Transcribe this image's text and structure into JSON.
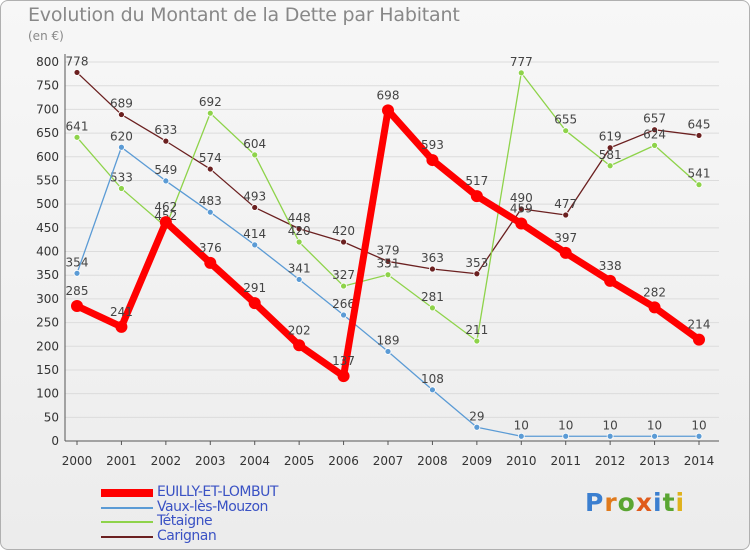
{
  "title": "Evolution du Montant de la Dette par Habitant",
  "unit": "(en €)",
  "logo": {
    "text": "Proxiti",
    "letter_colors": [
      "#3b7fd0",
      "#e07a1c",
      "#5aa532",
      "#e05b1c",
      "#3b7fd0",
      "#5aa532",
      "#e0b21c"
    ]
  },
  "chart_data": {
    "type": "line",
    "title": "Evolution du Montant de la Dette par Habitant",
    "ylabel": "(en €)",
    "xlabel": "",
    "ylim": [
      0,
      800
    ],
    "yticks": [
      0,
      50,
      100,
      150,
      200,
      250,
      300,
      350,
      400,
      450,
      500,
      550,
      600,
      650,
      700,
      750,
      800
    ],
    "grid": "horizontal",
    "legend": "bottom-left",
    "categories": [
      "2000",
      "2001",
      "2002",
      "2003",
      "2004",
      "2005",
      "2006",
      "2007",
      "2008",
      "2009",
      "2010",
      "2011",
      "2012",
      "2013",
      "2014"
    ],
    "series": [
      {
        "name": "Carignan",
        "color": "#6b2020",
        "values": [
          778,
          689,
          633,
          574,
          493,
          448,
          420,
          379,
          363,
          353,
          490,
          477,
          619,
          657,
          645
        ]
      },
      {
        "name": "Tétaigne",
        "color": "#8ed34a",
        "values": [
          641,
          533,
          452,
          692,
          604,
          420,
          327,
          351,
          281,
          211,
          777,
          655,
          581,
          624,
          541
        ]
      },
      {
        "name": "Vaux-lès-Mouzon",
        "color": "#5b9bd5",
        "values": [
          354,
          620,
          549,
          483,
          414,
          341,
          266,
          189,
          108,
          29,
          10,
          10,
          10,
          10,
          10
        ]
      },
      {
        "name": "EUILLY-ET-LOMBUT",
        "color": "#ff0000",
        "values": [
          285,
          241,
          462,
          376,
          291,
          202,
          137,
          698,
          593,
          517,
          459,
          397,
          338,
          282,
          214
        ]
      }
    ]
  }
}
